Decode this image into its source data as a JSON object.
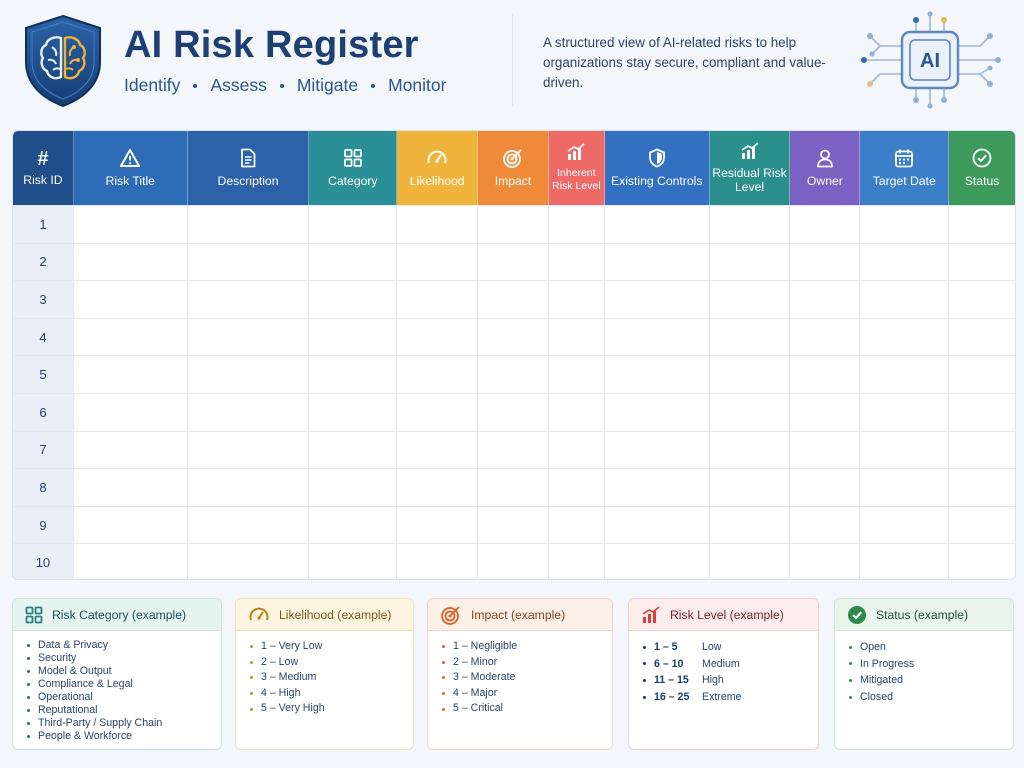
{
  "header": {
    "title": "AI Risk Register",
    "tagline": [
      "Identify",
      "Assess",
      "Mitigate",
      "Monitor"
    ],
    "description": "A structured view of AI-related risks to help organizations stay secure, compliant and value-driven.",
    "chip_label": "AI"
  },
  "table": {
    "columns": [
      {
        "label": "Risk ID",
        "icon": "hash-icon",
        "color": "#1f4e8a"
      },
      {
        "label": "Risk Title",
        "icon": "warning-icon",
        "color": "#2f6cb8"
      },
      {
        "label": "Description",
        "icon": "document-icon",
        "color": "#2c62a9"
      },
      {
        "label": "Category",
        "icon": "grid-icon",
        "color": "#2a8f96"
      },
      {
        "label": "Likelihood",
        "icon": "gauge-icon",
        "color": "#f0b43c"
      },
      {
        "label": "Impact",
        "icon": "target-icon",
        "color": "#ef8a3b"
      },
      {
        "label": "Inherent Risk Level",
        "icon": "bar-chart-icon",
        "color": "#ee6a66"
      },
      {
        "label": "Existing Controls",
        "icon": "shield-icon",
        "color": "#3470c2"
      },
      {
        "label": "Residual Risk Level",
        "icon": "bar-chart-icon",
        "color": "#2b8f8c"
      },
      {
        "label": "Owner",
        "icon": "user-icon",
        "color": "#7b61c4"
      },
      {
        "label": "Target Date",
        "icon": "calendar-icon",
        "color": "#3a7fc8"
      },
      {
        "label": "Status",
        "icon": "check-circle-icon",
        "color": "#3d9a5c"
      }
    ],
    "row_ids": [
      "1",
      "2",
      "3",
      "4",
      "5",
      "6",
      "7",
      "8",
      "9",
      "10"
    ]
  },
  "legend": {
    "category": {
      "title": "Risk Category (example)",
      "items": [
        "Data & Privacy",
        "Security",
        "Model & Output",
        "Compliance & Legal",
        "Operational",
        "Reputational",
        "Third-Party / Supply Chain",
        "People & Workforce"
      ]
    },
    "likelihood": {
      "title": "Likelihood (example)",
      "items": [
        "1 – Very Low",
        "2 – Low",
        "3 – Medium",
        "4 – High",
        "5 – Very High"
      ]
    },
    "impact": {
      "title": "Impact (example)",
      "items": [
        "1 – Negligible",
        "2 – Minor",
        "3 – Moderate",
        "4 – Major",
        "5 – Critical"
      ]
    },
    "risk_level": {
      "title": "Risk Level (example)",
      "items": [
        {
          "range": "1 – 5",
          "label": "Low"
        },
        {
          "range": "6 – 10",
          "label": "Medium"
        },
        {
          "range": "11 – 15",
          "label": "High"
        },
        {
          "range": "16 – 25",
          "label": "Extreme"
        }
      ]
    },
    "status": {
      "title": "Status (example)",
      "items": [
        "Open",
        "In Progress",
        "Mitigated",
        "Closed"
      ]
    }
  }
}
